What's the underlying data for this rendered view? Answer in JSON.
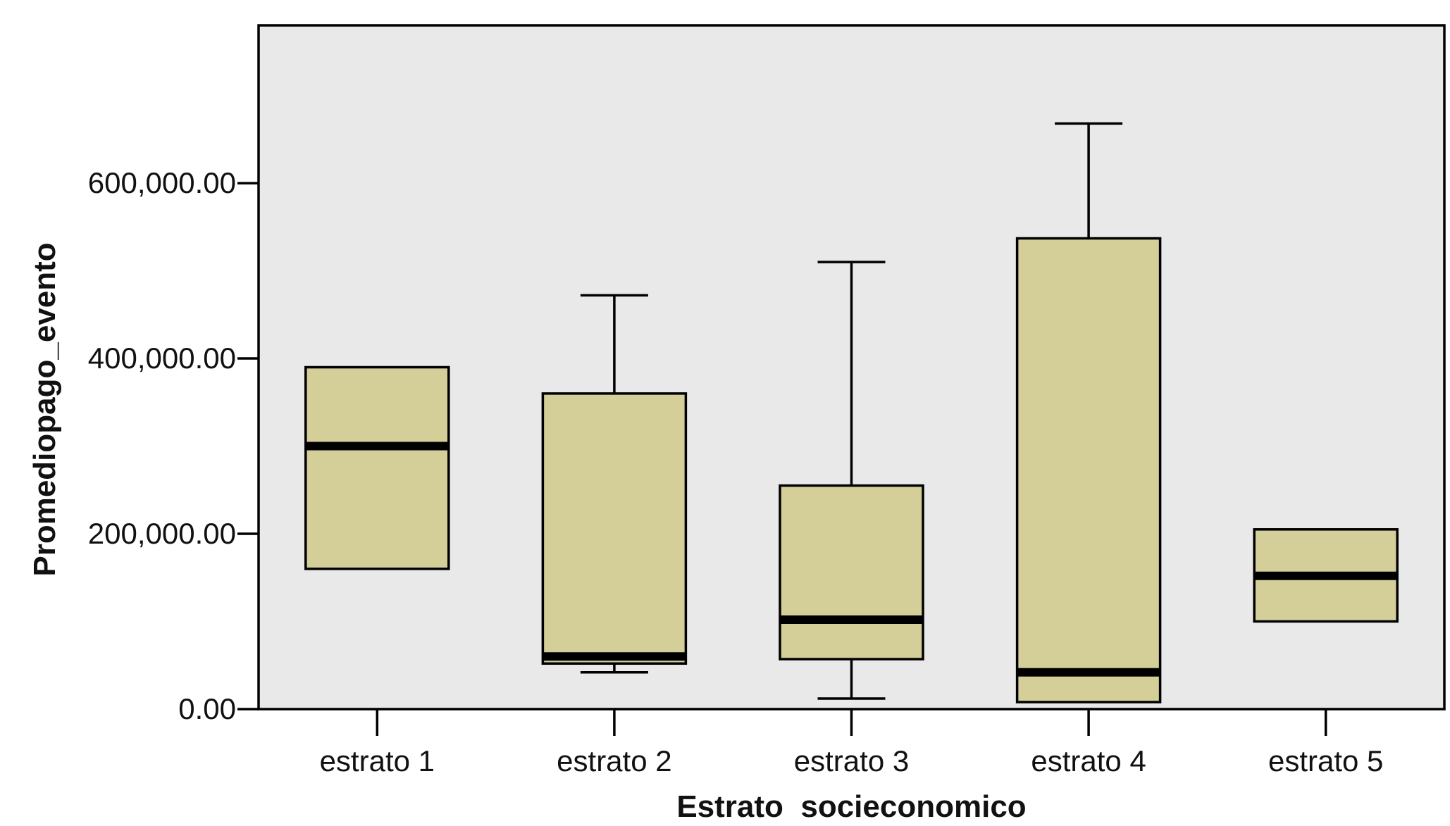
{
  "chart_data": {
    "type": "boxplot",
    "xlabel": "Estrato  socieconomico",
    "ylabel": "Promediopago_evento",
    "ylim": [
      0,
      780000
    ],
    "y_ticks": [
      0,
      200000,
      400000,
      600000
    ],
    "y_tick_labels": [
      "0.00",
      "200,000.00",
      "400,000.00",
      "600,000.00"
    ],
    "grid": false,
    "categories": [
      "estrato 1",
      "estrato 2",
      "estrato 3",
      "estrato 4",
      "estrato 5"
    ],
    "boxes": [
      {
        "category": "estrato 1",
        "whisker_low": null,
        "q1": 160000,
        "median": 300000,
        "q3": 390000,
        "whisker_high": null
      },
      {
        "category": "estrato 2",
        "whisker_low": 42000,
        "q1": 52000,
        "median": 60000,
        "q3": 360000,
        "whisker_high": 472000
      },
      {
        "category": "estrato 3",
        "whisker_low": 12000,
        "q1": 57000,
        "median": 102000,
        "q3": 255000,
        "whisker_high": 510000
      },
      {
        "category": "estrato 4",
        "whisker_low": null,
        "q1": 8000,
        "median": 42000,
        "q3": 537000,
        "whisker_high": 668000
      },
      {
        "category": "estrato 5",
        "whisker_low": null,
        "q1": 100000,
        "median": 152000,
        "q3": 205000,
        "whisker_high": null
      }
    ],
    "colors": {
      "plot_background": "#e9e9e9",
      "box_fill": "#d4ce98",
      "stroke": "#000000"
    }
  }
}
